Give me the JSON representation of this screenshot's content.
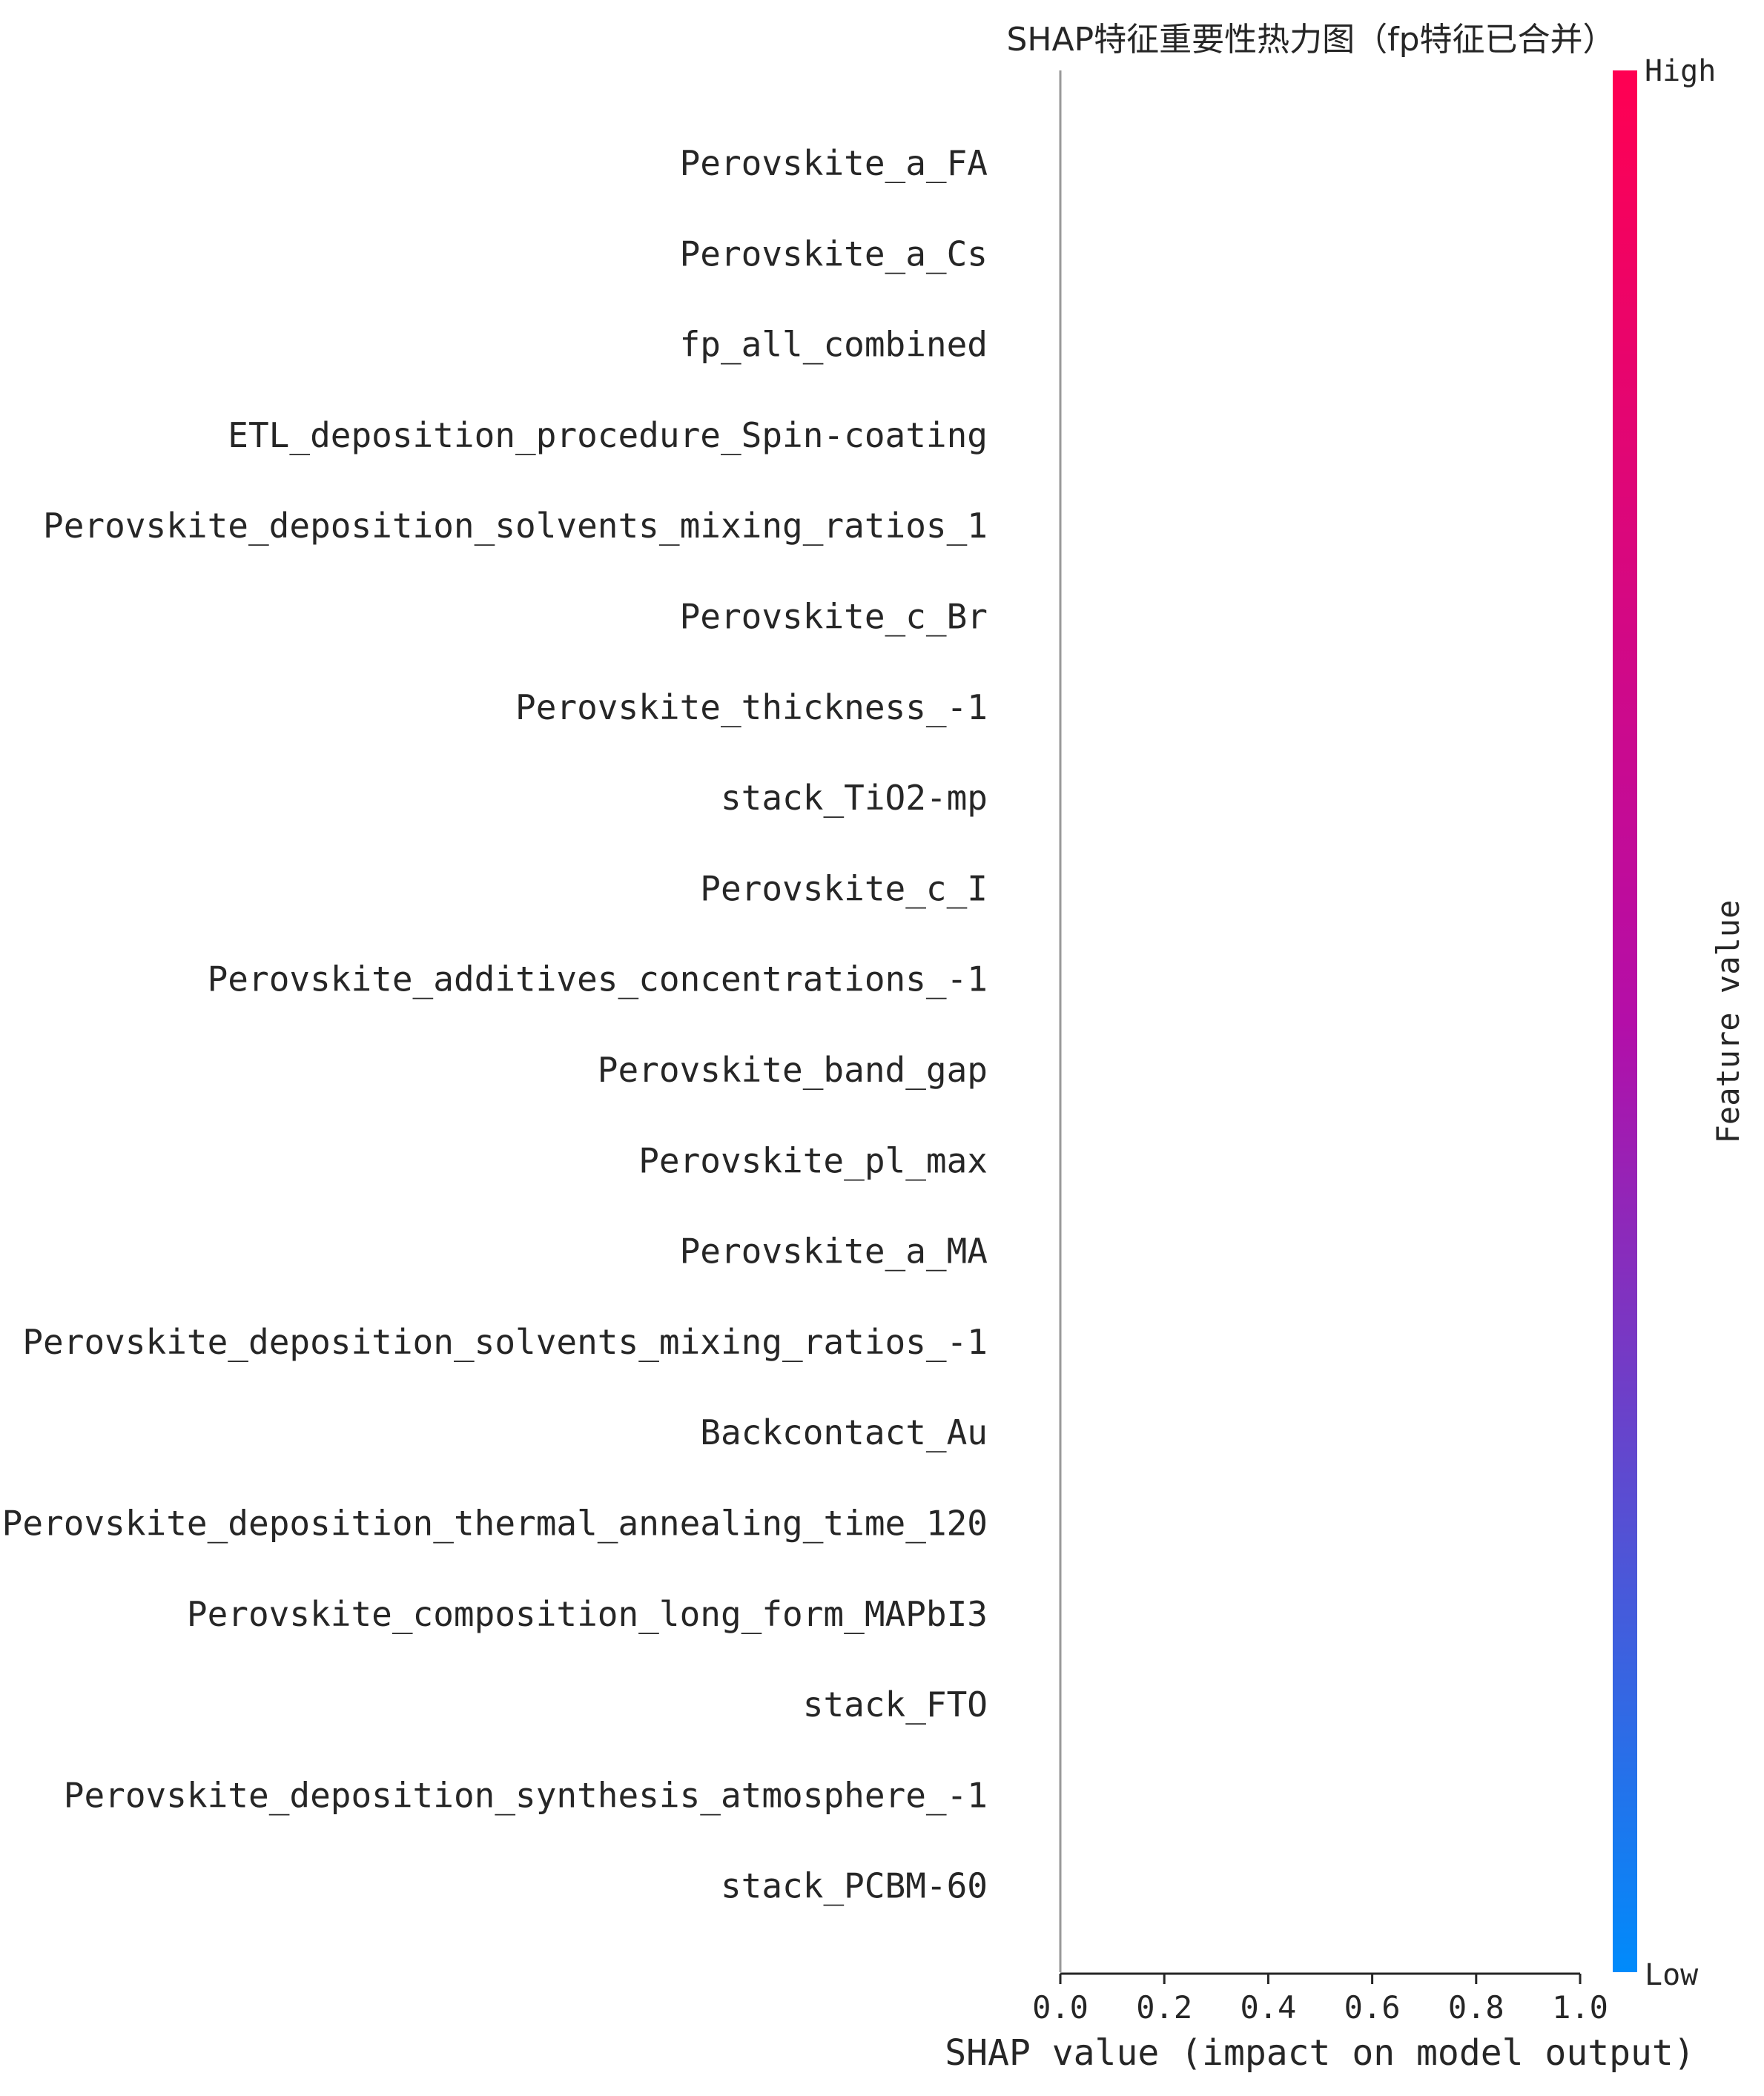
{
  "chart_data": {
    "type": "scatter",
    "title": "SHAP特征重要性热力图（fp特征已合并）",
    "xlabel": "SHAP value (impact on model output)",
    "ylabel": "",
    "xlim": [
      0.0,
      1.0
    ],
    "xticks": [
      "0.0",
      "0.2",
      "0.4",
      "0.6",
      "0.8",
      "1.0"
    ],
    "features": [
      "Perovskite_a_FA",
      "Perovskite_a_Cs",
      "fp_all_combined",
      "ETL_deposition_procedure_Spin-coating",
      "Perovskite_deposition_solvents_mixing_ratios_1",
      "Perovskite_c_Br",
      "Perovskite_thickness_-1",
      "stack_TiO2-mp",
      "Perovskite_c_I",
      "Perovskite_additives_concentrations_-1",
      "Perovskite_band_gap",
      "Perovskite_pl_max",
      "Perovskite_a_MA",
      "Perovskite_deposition_solvents_mixing_ratios_-1",
      "Backcontact_Au",
      "Perovskite_deposition_thermal_annealing_time_120",
      "Perovskite_composition_long_form_MAPbI3",
      "stack_FTO",
      "Perovskite_deposition_synthesis_atmosphere_-1",
      "stack_PCBM-60"
    ],
    "points": [],
    "colorbar": {
      "label": "Feature value",
      "high_label": "High",
      "low_label": "Low",
      "high_color": "#ff0052",
      "mid_color": "#b40ea8",
      "low_color": "#008bfb"
    },
    "grid": false,
    "legend": "none"
  }
}
